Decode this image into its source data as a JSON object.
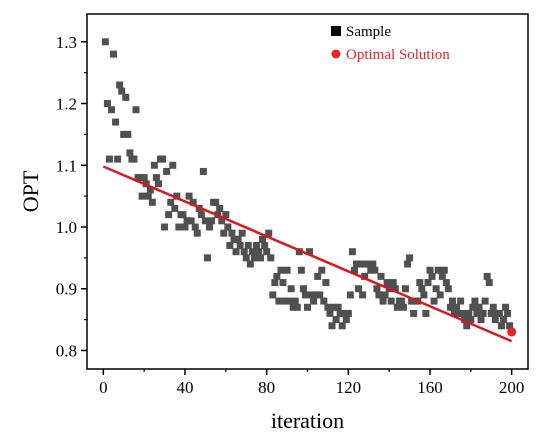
{
  "chart_data": {
    "type": "scatter",
    "xlabel": "iteration",
    "ylabel": "OPT",
    "xlim": [
      -8,
      208
    ],
    "ylim": [
      0.77,
      1.345
    ],
    "xticks": [
      0,
      40,
      80,
      120,
      160,
      200
    ],
    "yticks": [
      0.8,
      0.9,
      1.0,
      1.1,
      1.2,
      1.3
    ],
    "xtick_labels": [
      "0",
      "40",
      "80",
      "120",
      "160",
      "200"
    ],
    "ytick_labels": [
      "0.8",
      "0.9",
      "1.0",
      "1.1",
      "1.2",
      "1.3"
    ],
    "legend": {
      "position": "top-right",
      "entries": [
        {
          "label": "Sample",
          "marker": "square",
          "color": "#000000"
        },
        {
          "label": "Optimal Solution",
          "marker": "circle",
          "color": "#e8212a"
        }
      ]
    },
    "colors": {
      "sample": "#505050",
      "fit_line": "#d8171f",
      "optimal": "#e8212a"
    },
    "fit_line": {
      "x": [
        0,
        200
      ],
      "y": [
        1.098,
        0.815
      ]
    },
    "optimal_solution": {
      "x": 200,
      "y": 0.83
    },
    "series": [
      {
        "name": "Sample",
        "marker": "square",
        "points": [
          [
            1,
            1.3
          ],
          [
            2,
            1.2
          ],
          [
            3,
            1.11
          ],
          [
            4,
            1.19
          ],
          [
            5,
            1.28
          ],
          [
            6,
            1.17
          ],
          [
            7,
            1.11
          ],
          [
            8,
            1.23
          ],
          [
            9,
            1.22
          ],
          [
            10,
            1.15
          ],
          [
            11,
            1.21
          ],
          [
            12,
            1.15
          ],
          [
            13,
            1.12
          ],
          [
            14,
            1.11
          ],
          [
            15,
            1.11
          ],
          [
            16,
            1.19
          ],
          [
            17,
            1.08
          ],
          [
            18,
            1.08
          ],
          [
            19,
            1.05
          ],
          [
            20,
            1.08
          ],
          [
            21,
            1.07
          ],
          [
            22,
            1.05
          ],
          [
            23,
            1.06
          ],
          [
            24,
            1.04
          ],
          [
            25,
            1.1
          ],
          [
            26,
            1.08
          ],
          [
            27,
            1.07
          ],
          [
            28,
            1.11
          ],
          [
            29,
            1.11
          ],
          [
            30,
            1.0
          ],
          [
            31,
            1.09
          ],
          [
            32,
            1.02
          ],
          [
            33,
            1.04
          ],
          [
            34,
            1.1
          ],
          [
            35,
            1.03
          ],
          [
            36,
            1.05
          ],
          [
            37,
            1.0
          ],
          [
            38,
            1.02
          ],
          [
            39,
            1.02
          ],
          [
            40,
            1.0
          ],
          [
            41,
            1.01
          ],
          [
            42,
            1.05
          ],
          [
            43,
            1.01
          ],
          [
            44,
            1.04
          ],
          [
            45,
            1.0
          ],
          [
            46,
            0.99
          ],
          [
            47,
            1.03
          ],
          [
            48,
            1.02
          ],
          [
            49,
            1.09
          ],
          [
            50,
            1.01
          ],
          [
            51,
            0.95
          ],
          [
            52,
            1.0
          ],
          [
            53,
            1.01
          ],
          [
            54,
            1.04
          ],
          [
            55,
            1.04
          ],
          [
            56,
            1.02
          ],
          [
            57,
            1.03
          ],
          [
            58,
            1.01
          ],
          [
            59,
            0.99
          ],
          [
            60,
            1.02
          ],
          [
            61,
            1.0
          ],
          [
            62,
            0.97
          ],
          [
            63,
            0.99
          ],
          [
            64,
            0.98
          ],
          [
            65,
            0.96
          ],
          [
            66,
            0.98
          ],
          [
            67,
            0.97
          ],
          [
            68,
            0.99
          ],
          [
            69,
            0.96
          ],
          [
            70,
            0.95
          ],
          [
            71,
            0.97
          ],
          [
            72,
            0.94
          ],
          [
            73,
            0.96
          ],
          [
            74,
            0.95
          ],
          [
            75,
            0.97
          ],
          [
            76,
            0.96
          ],
          [
            77,
            0.95
          ],
          [
            78,
            0.98
          ],
          [
            79,
            0.97
          ],
          [
            80,
            0.96
          ],
          [
            81,
            0.99
          ],
          [
            82,
            0.95
          ],
          [
            83,
            0.89
          ],
          [
            84,
            0.91
          ],
          [
            85,
            0.92
          ],
          [
            86,
            0.88
          ],
          [
            87,
            0.93
          ],
          [
            88,
            0.91
          ],
          [
            89,
            0.88
          ],
          [
            90,
            0.93
          ],
          [
            91,
            0.88
          ],
          [
            92,
            0.9
          ],
          [
            93,
            0.87
          ],
          [
            94,
            0.88
          ],
          [
            95,
            0.87
          ],
          [
            96,
            0.96
          ],
          [
            97,
            0.93
          ],
          [
            98,
            0.9
          ],
          [
            99,
            0.89
          ],
          [
            100,
            0.87
          ],
          [
            101,
            0.96
          ],
          [
            102,
            0.89
          ],
          [
            103,
            0.88
          ],
          [
            104,
            0.89
          ],
          [
            105,
            0.92
          ],
          [
            106,
            0.89
          ],
          [
            107,
            0.93
          ],
          [
            108,
            0.88
          ],
          [
            109,
            0.91
          ],
          [
            110,
            0.87
          ],
          [
            111,
            0.86
          ],
          [
            112,
            0.84
          ],
          [
            113,
            0.87
          ],
          [
            114,
            0.85
          ],
          [
            115,
            0.87
          ],
          [
            116,
            0.86
          ],
          [
            117,
            0.84
          ],
          [
            118,
            0.86
          ],
          [
            119,
            0.85
          ],
          [
            120,
            0.86
          ],
          [
            121,
            0.89
          ],
          [
            122,
            0.96
          ],
          [
            123,
            0.93
          ],
          [
            124,
            0.94
          ],
          [
            125,
            0.9
          ],
          [
            126,
            0.94
          ],
          [
            127,
            0.89
          ],
          [
            128,
            0.92
          ],
          [
            129,
            0.94
          ],
          [
            130,
            0.94
          ],
          [
            131,
            0.93
          ],
          [
            132,
            0.94
          ],
          [
            133,
            0.93
          ],
          [
            134,
            0.9
          ],
          [
            135,
            0.89
          ],
          [
            136,
            0.92
          ],
          [
            137,
            0.88
          ],
          [
            138,
            0.89
          ],
          [
            139,
            0.91
          ],
          [
            140,
            0.9
          ],
          [
            141,
            0.88
          ],
          [
            142,
            0.91
          ],
          [
            143,
            0.9
          ],
          [
            144,
            0.87
          ],
          [
            145,
            0.88
          ],
          [
            146,
            0.88
          ],
          [
            147,
            0.87
          ],
          [
            148,
            0.9
          ],
          [
            149,
            0.94
          ],
          [
            150,
            0.95
          ],
          [
            151,
            0.88
          ],
          [
            152,
            0.86
          ],
          [
            153,
            0.88
          ],
          [
            154,
            0.88
          ],
          [
            155,
            0.91
          ],
          [
            156,
            0.9
          ],
          [
            157,
            0.89
          ],
          [
            158,
            0.86
          ],
          [
            159,
            0.91
          ],
          [
            160,
            0.93
          ],
          [
            161,
            0.92
          ],
          [
            162,
            0.88
          ],
          [
            163,
            0.9
          ],
          [
            164,
            0.93
          ],
          [
            165,
            0.89
          ],
          [
            166,
            0.92
          ],
          [
            167,
            0.93
          ],
          [
            168,
            0.91
          ],
          [
            169,
            0.9
          ],
          [
            170,
            0.87
          ],
          [
            171,
            0.88
          ],
          [
            172,
            0.86
          ],
          [
            173,
            0.87
          ],
          [
            174,
            0.86
          ],
          [
            175,
            0.88
          ],
          [
            176,
            0.86
          ],
          [
            177,
            0.85
          ],
          [
            178,
            0.84
          ],
          [
            179,
            0.86
          ],
          [
            180,
            0.85
          ],
          [
            181,
            0.87
          ],
          [
            182,
            0.88
          ],
          [
            183,
            0.86
          ],
          [
            184,
            0.87
          ],
          [
            185,
            0.85
          ],
          [
            186,
            0.86
          ],
          [
            187,
            0.88
          ],
          [
            188,
            0.92
          ],
          [
            189,
            0.91
          ],
          [
            190,
            0.86
          ],
          [
            191,
            0.87
          ],
          [
            192,
            0.85
          ],
          [
            193,
            0.86
          ],
          [
            194,
            0.86
          ],
          [
            195,
            0.84
          ],
          [
            196,
            0.85
          ],
          [
            197,
            0.87
          ],
          [
            198,
            0.86
          ],
          [
            199,
            0.84
          ],
          [
            200,
            0.83
          ]
        ]
      }
    ]
  }
}
